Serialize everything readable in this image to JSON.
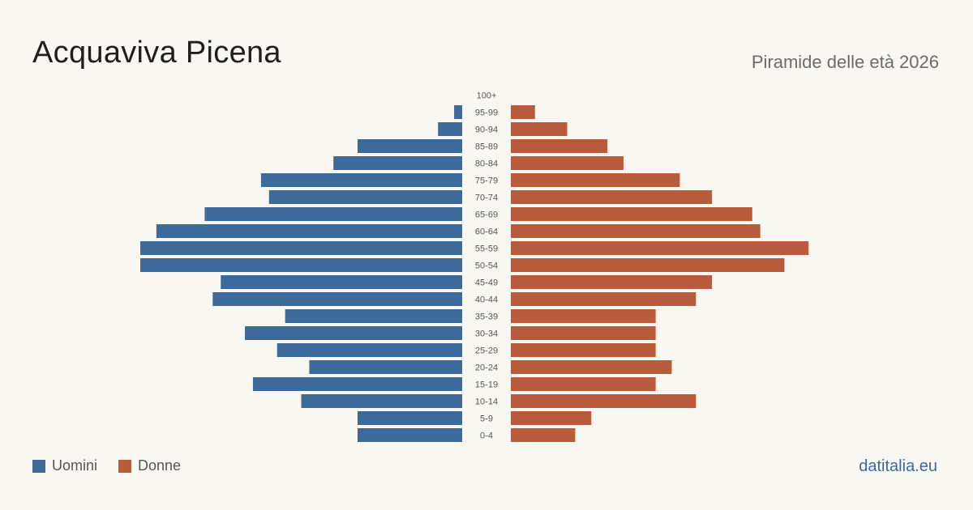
{
  "header": {
    "title": "Acquaviva Picena",
    "subtitle": "Piramide delle età 2026"
  },
  "legend": {
    "men_label": "Uomini",
    "women_label": "Donne"
  },
  "footer": {
    "source": "datitalia.eu"
  },
  "colors": {
    "men": "#3b6a9b",
    "women": "#b95c3e",
    "background": "#f9f7f2"
  },
  "chart_data": {
    "type": "bar",
    "orientation": "horizontal-pyramid",
    "categories": [
      "100+",
      "95-99",
      "90-94",
      "85-89",
      "80-84",
      "75-79",
      "70-74",
      "65-69",
      "60-64",
      "55-59",
      "50-54",
      "45-49",
      "40-44",
      "35-39",
      "30-34",
      "25-29",
      "20-24",
      "15-19",
      "10-14",
      "5-9",
      "0-4"
    ],
    "series": [
      {
        "name": "Uomini",
        "values": [
          0,
          1,
          3,
          13,
          16,
          25,
          24,
          32,
          38,
          40,
          40,
          30,
          31,
          22,
          27,
          23,
          19,
          26,
          20,
          13,
          13
        ]
      },
      {
        "name": "Donne",
        "values": [
          0,
          3,
          7,
          12,
          14,
          21,
          25,
          30,
          31,
          37,
          34,
          25,
          23,
          18,
          18,
          18,
          20,
          18,
          23,
          10,
          8
        ]
      }
    ],
    "grid": false,
    "legend_position": "bottom-left"
  }
}
